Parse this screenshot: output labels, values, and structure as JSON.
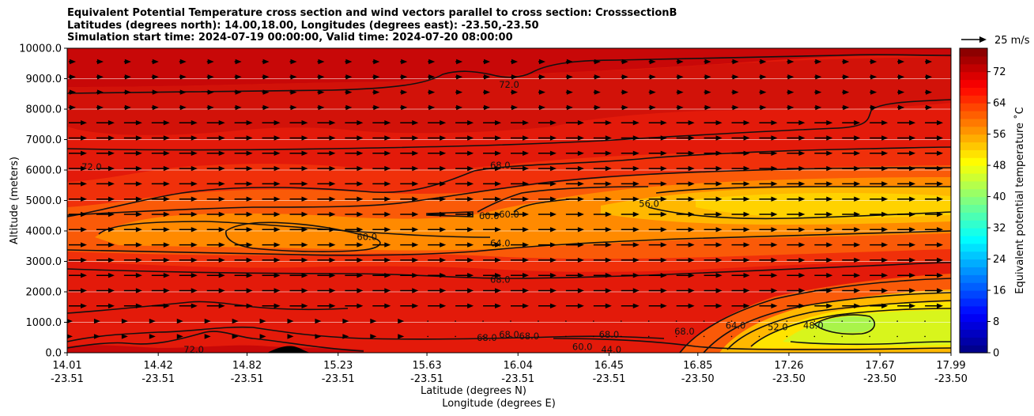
{
  "title": {
    "line1": "Equivalent Potential Temperature cross section and wind vectors parallel to cross section: CrosssectionB",
    "line2": "Latitudes (degrees north): 14.00,18.00, Longitudes (degrees east): -23.50,-23.50",
    "line3": "Simulation start time: 2024-07-19 00:00:00, Valid time: 2024-07-20 08:00:00"
  },
  "chart_data": {
    "type": "contour",
    "ylabel": "Altitude (meters)",
    "xlabel_lat": "Latitude (degrees N)",
    "xlabel_lon": "Longitude (degrees E)",
    "ylim": [
      0,
      10000
    ],
    "xlim": [
      14.01,
      17.99
    ],
    "y_ticks": [
      "0.0",
      "1000.0",
      "2000.0",
      "3000.0",
      "4000.0",
      "5000.0",
      "6000.0",
      "7000.0",
      "8000.0",
      "9000.0",
      "10000.0"
    ],
    "y_tick_values": [
      0,
      1000,
      2000,
      3000,
      4000,
      5000,
      6000,
      7000,
      8000,
      9000,
      10000
    ],
    "x_ticks": [
      {
        "lat": "14.01",
        "lon": "-23.51",
        "value": 14.01
      },
      {
        "lat": "14.42",
        "lon": "-23.51",
        "value": 14.42
      },
      {
        "lat": "14.82",
        "lon": "-23.51",
        "value": 14.82
      },
      {
        "lat": "15.23",
        "lon": "-23.51",
        "value": 15.23
      },
      {
        "lat": "15.63",
        "lon": "-23.51",
        "value": 15.63
      },
      {
        "lat": "16.04",
        "lon": "-23.51",
        "value": 16.04
      },
      {
        "lat": "16.45",
        "lon": "-23.51",
        "value": 16.45
      },
      {
        "lat": "16.85",
        "lon": "-23.50",
        "value": 16.85
      },
      {
        "lat": "17.26",
        "lon": "-23.50",
        "value": 17.26
      },
      {
        "lat": "17.67",
        "lon": "-23.50",
        "value": 17.67
      },
      {
        "lat": "17.99",
        "lon": "-23.50",
        "value": 17.99
      }
    ],
    "colorbar": {
      "label": "Equivalent potential temperature ˚C",
      "min": 0,
      "max": 78,
      "ticks": [
        "0",
        "8",
        "16",
        "24",
        "32",
        "40",
        "48",
        "56",
        "64",
        "72"
      ],
      "tick_values": [
        0,
        8,
        16,
        24,
        32,
        40,
        48,
        56,
        64,
        72
      ],
      "colormap": "jet"
    },
    "contour_labels": [
      {
        "text": "72.0",
        "x": 16.0,
        "y": 8800
      },
      {
        "text": "72.0",
        "x": 14.12,
        "y": 6100
      },
      {
        "text": "72.0",
        "x": 14.58,
        "y": 100
      },
      {
        "text": "68.0",
        "x": 15.96,
        "y": 6150
      },
      {
        "text": "68.0",
        "x": 15.96,
        "y": 2400
      },
      {
        "text": "68.0",
        "x": 15.9,
        "y": 500
      },
      {
        "text": "68.0",
        "x": 16.09,
        "y": 550
      },
      {
        "text": "68.0",
        "x": 16.45,
        "y": 600
      },
      {
        "text": "68.0",
        "x": 16.79,
        "y": 700
      },
      {
        "text": "68.0",
        "x": 16.0,
        "y": 600
      },
      {
        "text": "64.0",
        "x": 15.96,
        "y": 3600
      },
      {
        "text": "64.0",
        "x": 17.02,
        "y": 900
      },
      {
        "text": "60.0",
        "x": 15.91,
        "y": 4500
      },
      {
        "text": "60.0",
        "x": 16.0,
        "y": 4550
      },
      {
        "text": "60.0",
        "x": 15.36,
        "y": 3800
      },
      {
        "text": "60.0",
        "x": 16.33,
        "y": 200
      },
      {
        "text": "56.0",
        "x": 16.63,
        "y": 4900
      },
      {
        "text": "52.0",
        "x": 17.21,
        "y": 850
      },
      {
        "text": "48.0",
        "x": 17.37,
        "y": 900
      },
      {
        "text": "44.0",
        "x": 16.46,
        "y": 100
      }
    ],
    "wind_reference": {
      "label": "25 m/s",
      "speed": 25
    }
  }
}
